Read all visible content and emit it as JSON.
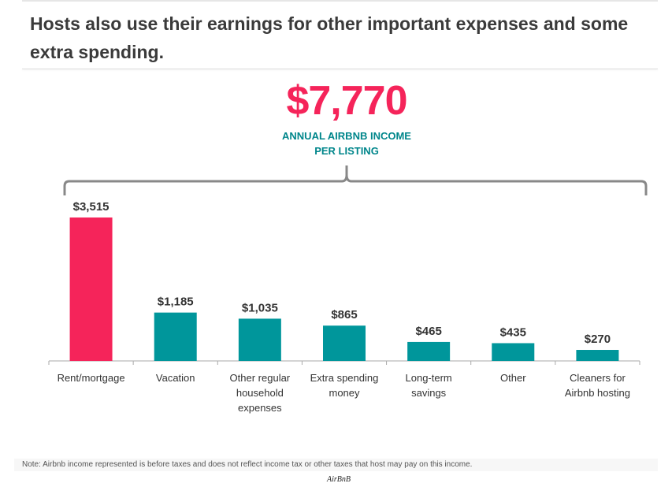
{
  "title": "Hosts also use their earnings for other important expenses and some extra spending.",
  "total": {
    "value": "$7,770",
    "label_line1": "ANNUAL AIRBNB INCOME",
    "label_line2": "PER LISTING"
  },
  "note": "Note: Airbnb income represented is before taxes and does not reflect income tax or other taxes that host may pay on this income.",
  "source": "AirBnB",
  "chart_data": {
    "type": "bar",
    "categories": [
      [
        "Rent/mortgage"
      ],
      [
        "Vacation"
      ],
      [
        "Other regular",
        "household",
        "expenses"
      ],
      [
        "Extra spending",
        "money"
      ],
      [
        "Long-term",
        "savings"
      ],
      [
        "Other"
      ],
      [
        "Cleaners for",
        "Airbnb hosting"
      ]
    ],
    "values": [
      3515,
      1185,
      1035,
      865,
      465,
      435,
      270
    ],
    "data_labels": [
      "$3,515",
      "$1,185",
      "$1,035",
      "$865",
      "$465",
      "$435",
      "$270"
    ],
    "colors": [
      "#f5245a",
      "#00969b",
      "#00969b",
      "#00969b",
      "#00969b",
      "#00969b",
      "#00969b"
    ],
    "grid": false
  }
}
